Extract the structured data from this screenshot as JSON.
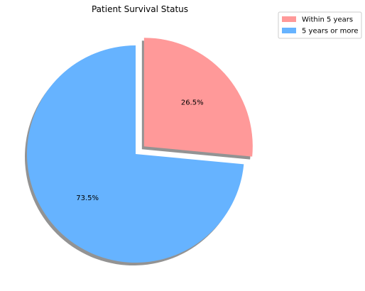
{
  "chart_data": {
    "type": "pie",
    "title": "Patient Survival Status",
    "slices": [
      {
        "label": "Within 5 years",
        "value": 26.5,
        "label_text": "26.5%",
        "color": "#ff9999",
        "exploded": true
      },
      {
        "label": "5 years or more",
        "value": 73.5,
        "label_text": "73.5%",
        "color": "#66b3ff",
        "exploded": false
      }
    ],
    "start_angle_deg": 90,
    "shadow": true,
    "legend_position": "top-right"
  }
}
